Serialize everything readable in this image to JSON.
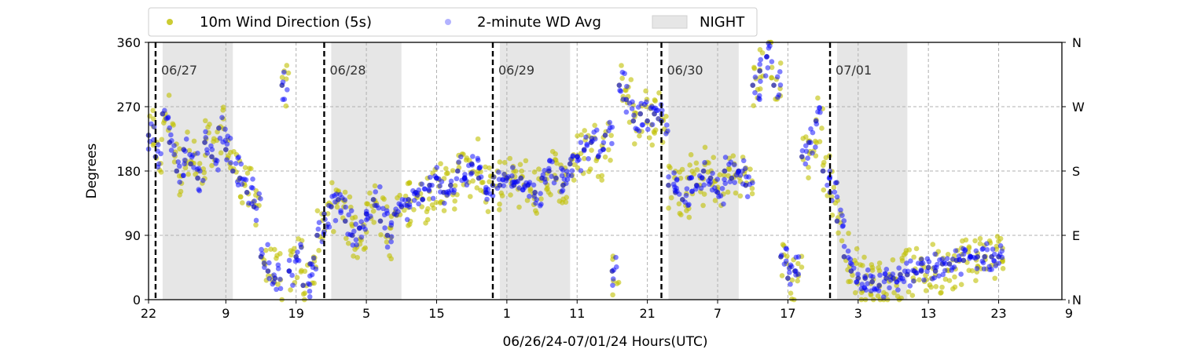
{
  "chart_data": {
    "type": "scatter",
    "xlabel": "06/26/24-07/01/24  Hours(UTC)",
    "ylabel": "Degrees",
    "x_start_hour": 22,
    "x_range_hours": [
      0,
      130
    ],
    "ylim": [
      0,
      360
    ],
    "x_ticks": [
      {
        "hour": 0,
        "label": "22"
      },
      {
        "hour": 11,
        "label": "9"
      },
      {
        "hour": 21,
        "label": "19"
      },
      {
        "hour": 31,
        "label": "5"
      },
      {
        "hour": 41,
        "label": "15"
      },
      {
        "hour": 51,
        "label": "1"
      },
      {
        "hour": 61,
        "label": "11"
      },
      {
        "hour": 71,
        "label": "21"
      },
      {
        "hour": 81,
        "label": "7"
      },
      {
        "hour": 91,
        "label": "17"
      },
      {
        "hour": 101,
        "label": "3"
      },
      {
        "hour": 111,
        "label": "13"
      },
      {
        "hour": 121,
        "label": "23"
      },
      {
        "hour": 131,
        "label": "9"
      }
    ],
    "y_ticks": [
      0,
      90,
      180,
      270,
      360
    ],
    "y2_ticks": [
      {
        "value": 0,
        "label": "N"
      },
      {
        "value": 90,
        "label": "E"
      },
      {
        "value": 180,
        "label": "S"
      },
      {
        "value": 270,
        "label": "W"
      },
      {
        "value": 360,
        "label": "N"
      }
    ],
    "grid": true,
    "legend": {
      "placement": "top",
      "entries": [
        "10m Wind Direction (5s)",
        "2-minute WD Avg",
        "NIGHT"
      ]
    },
    "colors": {
      "wd_5s": "#bfbf00",
      "wd_avg": "#0000ff",
      "night": "#e6e6e6",
      "day_line": "#000000"
    },
    "night_periods": [
      [
        2,
        12
      ],
      [
        26,
        36
      ],
      [
        50,
        60
      ],
      [
        74,
        84
      ],
      [
        98,
        108
      ]
    ],
    "day_boundaries": [
      {
        "hour": 1,
        "label": "06/27"
      },
      {
        "hour": 25,
        "label": "06/28"
      },
      {
        "hour": 49,
        "label": "06/29"
      },
      {
        "hour": 73,
        "label": "06/30"
      },
      {
        "hour": 97,
        "label": "07/01"
      }
    ],
    "series": [
      {
        "name": "10m Wind Direction (5s)",
        "x": [
          0,
          1,
          2,
          3,
          4,
          5,
          6,
          7,
          8,
          9,
          10,
          11,
          12,
          13,
          14,
          15,
          16,
          17,
          18,
          19,
          20,
          21,
          22,
          23,
          24,
          25,
          26,
          27,
          28,
          29,
          30,
          31,
          32,
          33,
          34,
          35,
          36,
          37,
          38,
          39,
          40,
          41,
          42,
          43,
          44,
          45,
          46,
          47,
          48,
          49,
          50,
          51,
          52,
          53,
          54,
          55,
          56,
          57,
          58,
          59,
          60,
          61,
          62,
          63,
          64,
          65,
          66,
          67,
          68,
          69,
          70,
          71,
          72,
          73,
          74,
          75,
          76,
          77,
          78,
          79,
          80,
          81,
          82,
          83,
          84,
          85,
          86,
          87,
          88,
          89,
          90,
          91,
          92,
          93,
          94,
          95,
          96,
          97,
          98,
          99,
          100,
          101,
          102,
          103,
          104,
          105,
          106,
          107,
          108,
          109,
          110,
          111,
          112,
          113,
          114,
          115,
          116,
          117,
          118,
          119,
          120,
          121
        ],
        "values": [
          230,
          200,
          260,
          220,
          180,
          210,
          190,
          170,
          220,
          200,
          240,
          210,
          180,
          170,
          150,
          130,
          60,
          40,
          30,
          300,
          40,
          60,
          20,
          50,
          90,
          120,
          130,
          140,
          110,
          90,
          100,
          120,
          140,
          110,
          90,
          120,
          130,
          140,
          150,
          140,
          160,
          170,
          150,
          160,
          180,
          170,
          190,
          170,
          150,
          160,
          160,
          170,
          160,
          170,
          160,
          150,
          170,
          180,
          170,
          160,
          190,
          200,
          210,
          220,
          200,
          230,
          40,
          300,
          280,
          250,
          260,
          250,
          260,
          250,
          160,
          150,
          140,
          170,
          160,
          180,
          170,
          150,
          180,
          170,
          180,
          160,
          300,
          320,
          340,
          300,
          60,
          30,
          40,
          200,
          220,
          250,
          180,
          150,
          110,
          60,
          40,
          30,
          30,
          25,
          20,
          30,
          30,
          35,
          35,
          40,
          40,
          45,
          40,
          50,
          50,
          55,
          55,
          60,
          60,
          60,
          60,
          60
        ]
      },
      {
        "name": "2-minute WD Avg",
        "x": [
          0,
          1,
          2,
          3,
          4,
          5,
          6,
          7,
          8,
          9,
          10,
          11,
          12,
          13,
          14,
          15,
          16,
          17,
          18,
          19,
          20,
          21,
          22,
          23,
          24,
          25,
          26,
          27,
          28,
          29,
          30,
          31,
          32,
          33,
          34,
          35,
          36,
          37,
          38,
          39,
          40,
          41,
          42,
          43,
          44,
          45,
          46,
          47,
          48,
          49,
          50,
          51,
          52,
          53,
          54,
          55,
          56,
          57,
          58,
          59,
          60,
          61,
          62,
          63,
          64,
          65,
          66,
          67,
          68,
          69,
          70,
          71,
          72,
          73,
          74,
          75,
          76,
          77,
          78,
          79,
          80,
          81,
          82,
          83,
          84,
          85,
          86,
          87,
          88,
          89,
          90,
          91,
          92,
          93,
          94,
          95,
          96,
          97,
          98,
          99,
          100,
          101,
          102,
          103,
          104,
          105,
          106,
          107,
          108,
          109,
          110,
          111,
          112,
          113,
          114,
          115,
          116,
          117,
          118,
          119,
          120,
          121
        ],
        "values": [
          230,
          200,
          260,
          220,
          180,
          210,
          190,
          170,
          220,
          200,
          240,
          210,
          180,
          170,
          150,
          130,
          60,
          40,
          30,
          300,
          40,
          60,
          20,
          50,
          90,
          120,
          130,
          140,
          110,
          90,
          100,
          120,
          140,
          110,
          90,
          120,
          130,
          140,
          150,
          140,
          160,
          170,
          150,
          160,
          180,
          170,
          190,
          170,
          150,
          160,
          160,
          170,
          160,
          170,
          160,
          150,
          170,
          180,
          170,
          160,
          190,
          200,
          210,
          220,
          200,
          230,
          40,
          300,
          280,
          250,
          260,
          250,
          260,
          250,
          160,
          150,
          140,
          170,
          160,
          180,
          170,
          150,
          180,
          170,
          180,
          160,
          300,
          320,
          340,
          300,
          60,
          30,
          40,
          200,
          220,
          250,
          180,
          150,
          110,
          60,
          40,
          30,
          30,
          25,
          20,
          30,
          30,
          35,
          35,
          40,
          40,
          45,
          40,
          50,
          50,
          55,
          55,
          60,
          60,
          60,
          60,
          60
        ]
      }
    ]
  }
}
